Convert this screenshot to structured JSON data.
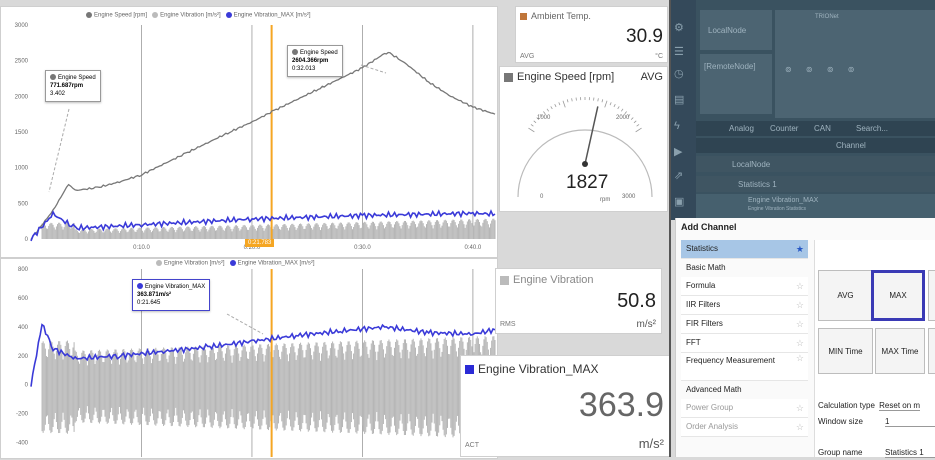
{
  "chart_data": [
    {
      "type": "line",
      "title": "",
      "legend": [
        "Engine Speed [rpm]",
        "Engine Vibration [m/s²]",
        "Engine Vibration_MAX [m/s²]"
      ],
      "y_ticks": [
        "3000",
        "2500",
        "2000",
        "1500",
        "1000",
        "500",
        "0"
      ],
      "x_ticks": [
        "0:10.0",
        "0:20.0",
        "0:30.0",
        "0:40.0"
      ],
      "ylim": [
        0,
        3000
      ],
      "cursor_label": "0:21.783",
      "series": [
        {
          "name": "Engine Speed [rpm]",
          "color": "#777777",
          "x": [
            0,
            2,
            3.4,
            4,
            6,
            8,
            10,
            12,
            14,
            16,
            18,
            20,
            22,
            24,
            26,
            28,
            30,
            32,
            32.5,
            34,
            36,
            38,
            40,
            42
          ],
          "y": [
            0,
            400,
            772,
            680,
            720,
            800,
            900,
            1050,
            1200,
            1350,
            1500,
            1640,
            1800,
            1950,
            2100,
            2250,
            2400,
            2600,
            2605,
            2450,
            2200,
            2000,
            1850,
            1750
          ]
        },
        {
          "name": "Engine Vibration_MAX [m/s²]",
          "color": "#3a3ad8",
          "x": [
            0,
            2,
            4,
            10,
            20,
            30,
            40,
            42
          ],
          "y": [
            0,
            350,
            150,
            200,
            280,
            330,
            360,
            350
          ]
        }
      ],
      "tooltips": [
        {
          "title": "Engine Speed",
          "value": "771.687rpm",
          "time": "3.402"
        },
        {
          "title": "Engine Speed",
          "value": "2604.366rpm",
          "time": "0:32.013"
        }
      ]
    },
    {
      "type": "line",
      "title": "",
      "legend": [
        "Engine Vibration [m/s²]",
        "Engine Vibration_MAX [m/s²]"
      ],
      "y_ticks": [
        "800",
        "600",
        "400",
        "200",
        "0",
        "-200",
        "-400"
      ],
      "ylim": [
        -500,
        800
      ],
      "series": [
        {
          "name": "Engine Vibration_MAX [m/s²]",
          "color": "#3a3ad8",
          "x": [
            0,
            1,
            2,
            4,
            8,
            12,
            16,
            20,
            24,
            28,
            32,
            36,
            40,
            42
          ],
          "y": [
            0,
            420,
            250,
            180,
            200,
            230,
            260,
            300,
            340,
            370,
            400,
            360,
            350,
            380
          ]
        }
      ],
      "tooltips": [
        {
          "title": "Engine Vibration_MAX",
          "value": "363.871m/s²",
          "time": "0:21.645"
        }
      ]
    }
  ],
  "widgets": {
    "ambient": {
      "title": "Ambient Temp.",
      "value": "30.9",
      "unit": "°C",
      "stat": "AVG",
      "color": "#c0763a"
    },
    "speed": {
      "title": "Engine Speed [rpm]",
      "stat": "AVG",
      "value": "1827",
      "unit": "rpm",
      "gauge_labels": [
        "0",
        "1000",
        "2000",
        "3000"
      ],
      "color": "#777777",
      "needle_value": 1827,
      "gauge_max": 3000
    },
    "vibration": {
      "title": "Engine Vibration",
      "value": "50.8",
      "unit": "m/s²",
      "stat": "RMS",
      "color": "#bbbbbb"
    },
    "vibmax": {
      "title": "Engine Vibration_MAX",
      "value": "363.9",
      "unit": "m/s²",
      "stat": "ACT",
      "color": "#2b2bd6"
    }
  },
  "right_panel": {
    "top": {
      "local_node": "LocalNode",
      "remote_node": "[RemoteNode]",
      "trion": "TRIONet"
    },
    "tabs": [
      "Analog",
      "Counter",
      "CAN",
      "Search..."
    ],
    "channel_header": "Channel",
    "tree": [
      "LocalNode",
      "Statistics 1"
    ],
    "tree_item": {
      "title": "Engine Vibration_MAX",
      "subtitle": "Engine Vibration Statistics"
    }
  },
  "add_channel": {
    "title": "Add Channel",
    "selected": "Statistics",
    "section_basic": "Basic Math",
    "basic_items": [
      "Formula",
      "IIR Filters",
      "FIR Filters",
      "FFT",
      "Frequency Measurement"
    ],
    "section_advanced": "Advanced Math",
    "advanced_items": [
      "Power Group",
      "Order Analysis"
    ],
    "buttons_row1": [
      "AVG",
      "MAX"
    ],
    "buttons_row2": [
      "MIN Time",
      "MAX Time"
    ],
    "calc_label": "Calculation type",
    "calc_value": "Reset on m",
    "window_label": "Window size",
    "window_value": "1",
    "group_label": "Group name",
    "group_value": "Statistics 1"
  }
}
